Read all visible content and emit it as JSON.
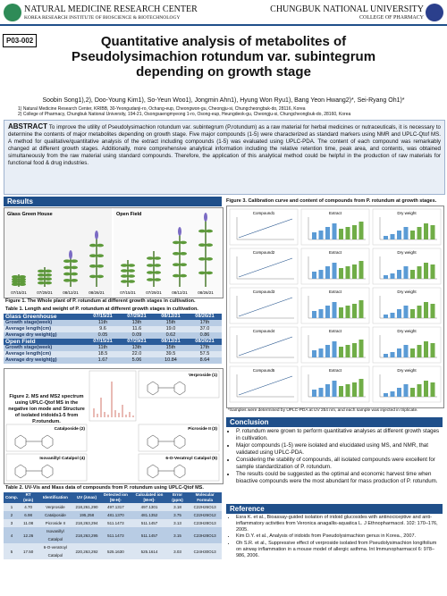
{
  "header": {
    "left_title": "NATURAL MEDICINE RESEARCH CENTER",
    "left_subtitle": "KOREA RESEARCH INSTITUTE OF BIOSCIENCE & BIOTECHNOLOGY",
    "right_title": "CHUNGBUK NATIONAL UNIVERSITY",
    "right_subtitle": "COLLEGE OF PHARMACY",
    "poster_id": "P03-002",
    "title": "Quantitative analysis of metabolites of Pseudolysimachion rotundum var. subintegrum depending on growth stage",
    "authors": "Soobin Song1),2), Doo-Young Kim1), So-Yeun Woo1), Jongmin Ahn1), Hyung Won Ryu1), Bang Yeon Hwang2)*, Sei-Ryang Oh1)*",
    "affiliations": [
      "1) Natural Medicine Research Center, KRIBB, 30-Yeongudanji-ro, Ochang-eup, Cheongwon-gu, Cheongju-si, Chungcheongbuk-do, 28116, Korea",
      "2) College of Pharmacy, Chungbuk National University, 194-21, Osongsaengmyeong 1-ro, Osong-eup, Heungdeok-gu, Cheongju-si, Chungcheongbuk-do, 28160, Korea"
    ]
  },
  "abstract": {
    "label": "ABSTRACT",
    "text": "To improve the utility of Pseudolysimachion rotundum var. subintegrum (P.rotundum) as a raw material for herbal medicines or nutraceuticals, it is necessary to determine the contents of major metabolites depending on growth stage. Five major compounds (1-5) were characterized as standard markers using NMR and UPLC-Qtof MS. A method for qualitative/quantitative analysis of the extract including compounds (1-5) was evaluated using UPLC-PDA. The content of each compound was remarkably changed at different growth stages. Additionally, more comprehensive analytical information including the relative retention time, peak area, and contents, was obtained simultaneously from the raw material using standard compounds. Therefore, the application of this analytical method could be helpful in the production of raw materials for functional food & drug industries."
  },
  "results": {
    "title": "Results",
    "figure1": {
      "panels": [
        "Glass Green House",
        "Open Field"
      ],
      "dates": [
        "07/15/21",
        "07/29/21",
        "08/12/21",
        "08/26/21"
      ],
      "caption": "Figure 1. The Whole plant of P. rotundum at different growth stages in cultivation."
    },
    "table1": {
      "caption": "Table 1. Length and weight of P. rotundum at different growth stages in cultivation.",
      "columns": [
        "07/15/21",
        "07/29/21",
        "08/12/21",
        "08/26/21"
      ],
      "groups": [
        {
          "name": "Glass Greenhouse",
          "rows": [
            [
              "Growth stage(week)",
              "11th",
              "13th",
              "15th",
              "17th"
            ],
            [
              "Average length(cm)",
              "9.6",
              "11.6",
              "19.0",
              "37.0"
            ],
            [
              "Average dry weight(g)",
              "0.05",
              "0.09",
              "0.62",
              "0.86"
            ]
          ]
        },
        {
          "name": "Open Field",
          "rows": [
            [
              "Growth stage(week)",
              "11th",
              "13th",
              "15th",
              "17th"
            ],
            [
              "Average length(cm)",
              "18.5",
              "22.0",
              "39.5",
              "57.5"
            ],
            [
              "Average dry weight(g)",
              "1.67",
              "5.06",
              "10.84",
              "8.64"
            ]
          ]
        }
      ]
    },
    "figure2": {
      "caption": "Figure 2. MS and MS2 spectrum using UPLC-Qtof MS in the negative ion mode and Structure of isolated iridoids1-5 from P.rotundum.",
      "compounds": [
        "Verproside (1)",
        "Catalposide (2)",
        "Picroside II (3)",
        "Isovanillyl Catalpol (4)",
        "6-O-Veratroyl Catalpol (5)"
      ]
    },
    "table2": {
      "caption": "Table 2. UV-Vis and Mass data of compounds from P. rotundum using UPLC-Qtof MS.",
      "header": [
        "Comp.",
        "RT (min)",
        "Identification",
        "UV (λmax)",
        "Detected ion [M-H]-",
        "Calculated ion [M-H]-",
        "Error (ppm)",
        "Molecular Formula"
      ],
      "rows": [
        [
          "1",
          "4.70",
          "Verproside",
          "218,261,290",
          "497.1317",
          "497.1301",
          "3.18",
          "C22H26O13"
        ],
        [
          "2",
          "6.98",
          "Catalposide",
          "195,258",
          "481.1370",
          "481.1352",
          "3.75",
          "C22H26O12"
        ],
        [
          "3",
          "11.08",
          "Picroside II",
          "218,263,294",
          "511.1473",
          "511.1457",
          "3.13",
          "C23H28O13"
        ],
        [
          "4",
          "12.26",
          "Isovanillyl Catalpol",
          "218,263,295",
          "511.1473",
          "511.1457",
          "3.15",
          "C23H28O13"
        ],
        [
          "5",
          "17.50",
          "6-O-veratroyl Catalpol",
          "220,263,292",
          "525.1630",
          "525.1614",
          "3.03",
          "C24H30O13"
        ]
      ]
    },
    "figure3": {
      "caption": "Figure 3. Calibration curve and content of compounds from P. rotundum at growth stages.",
      "rows": [
        "Compound1",
        "Compound2",
        "Compound3",
        "Compound4",
        "Compound5"
      ],
      "extract": "Extract",
      "dry_weight": "Dry weight",
      "footnote": "*Samples were determined by UPLC-PDA at UV 254 nm, and each sample was injected in triplicate."
    }
  },
  "conclusion": {
    "title": "Conclusion",
    "items": [
      "P. rotundum were grown to perform quantitative analyses at different growth stages in cultivation.",
      "Major compounds (1-5) were isolated and elucidated using MS, and NMR, that validated using UPLC-PDA.",
      "Considering the stability of compounds, all isolated compounds were excellent for sample standardization of P. rotundum.",
      "The results could be suggested as the optimal and economic harvest time when bioactive compounds were the most abundant for mass production of P. rotundum."
    ]
  },
  "references": {
    "title": "Reference",
    "items": [
      "Esra K. et al., Bioassay-guided isolation of iridoid glucosides with antinociceptive and anti-inflammatory activities from Veronica anagallis-aquatica L. J Ethnopharmacol. 102: 170–176, 2005.",
      "Kim D.Y. et al., Analysis of iridoids from Pseudolysimachion genus in Korea., 2007.",
      "Oh S.R. et al., Suppressive effect of verproside isolated from Pseudolysimachion longifolium on airway inflammation in a mouse model of allergic asthma. Int Immunopharmacol 6: 978–986, 2006."
    ]
  }
}
